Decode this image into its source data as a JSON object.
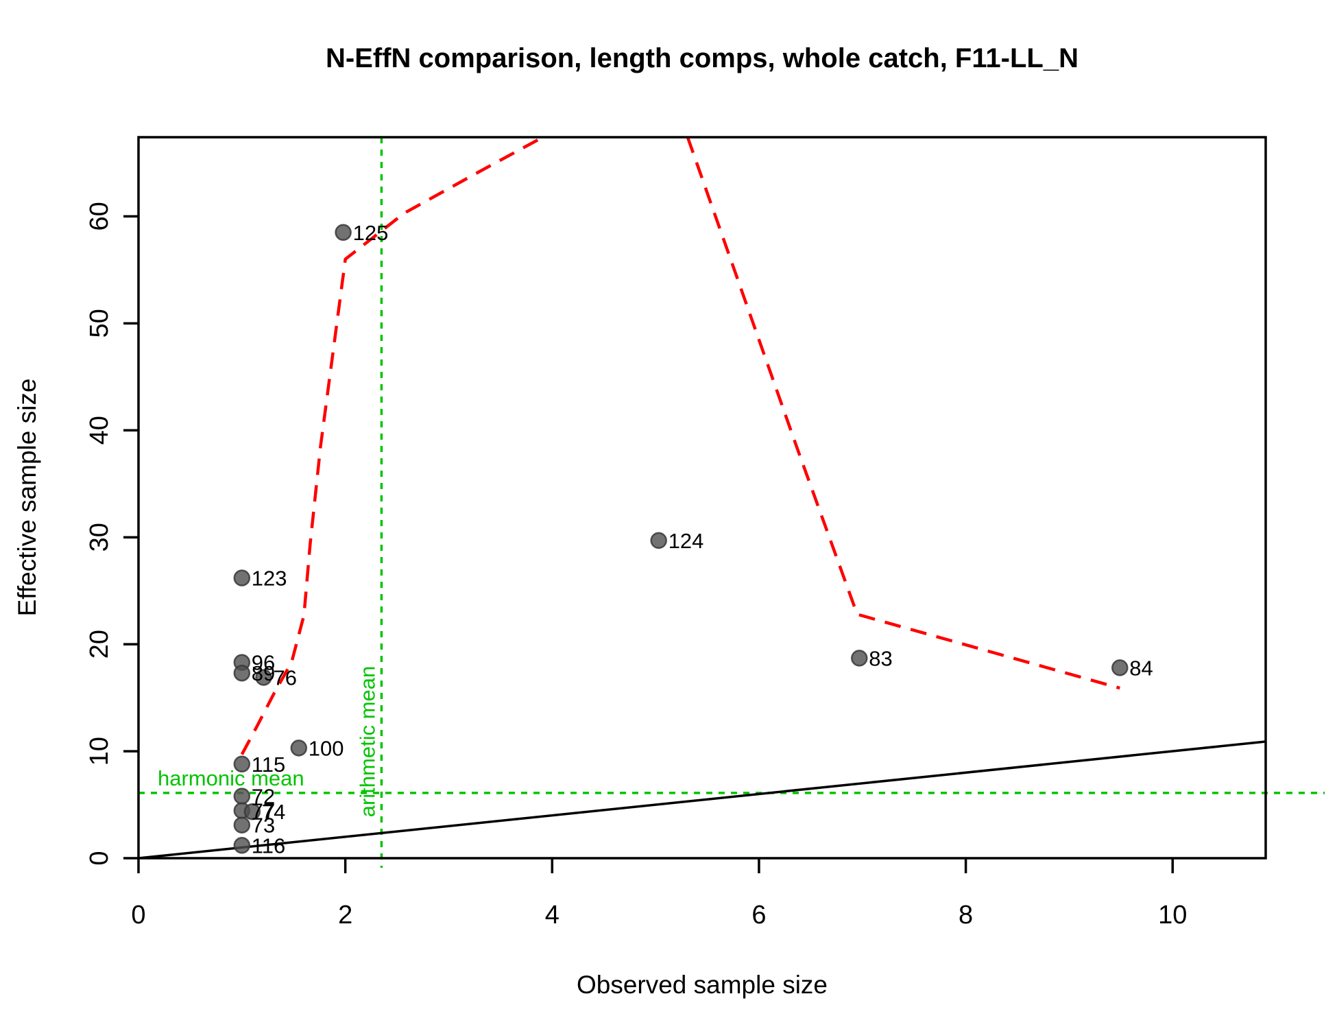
{
  "title": "N-EffN comparison, length comps, whole catch, F11-LL_N",
  "chart_data": {
    "type": "scatter",
    "title": "N-EffN comparison, length comps, whole catch, F11-LL_N",
    "xlabel": "Observed sample size",
    "ylabel": "Effective sample size",
    "xlim": [
      0,
      10.9
    ],
    "ylim": [
      0,
      67.4
    ],
    "x_ticks": [
      0,
      2,
      4,
      6,
      8,
      10
    ],
    "y_ticks": [
      0,
      10,
      20,
      30,
      40,
      50,
      60
    ],
    "grid": false,
    "legend_position": "none",
    "point_color": "#4f4f4f",
    "point_edge_color": "#383838",
    "points": [
      {
        "label": "125",
        "x": 1.98,
        "y": 58.5
      },
      {
        "label": "123",
        "x": 1.0,
        "y": 26.2
      },
      {
        "label": "96",
        "x": 1.0,
        "y": 18.3
      },
      {
        "label": "89",
        "x": 1.0,
        "y": 17.3
      },
      {
        "label": "76",
        "x": 1.21,
        "y": 16.9
      },
      {
        "label": "100",
        "x": 1.55,
        "y": 10.3
      },
      {
        "label": "115",
        "x": 1.0,
        "y": 8.8
      },
      {
        "label": "72",
        "x": 1.0,
        "y": 5.8
      },
      {
        "label": "77",
        "x": 1.0,
        "y": 4.45
      },
      {
        "label": "74",
        "x": 1.1,
        "y": 4.35
      },
      {
        "label": "73",
        "x": 1.0,
        "y": 3.1
      },
      {
        "label": "116",
        "x": 1.0,
        "y": 1.2
      },
      {
        "label": "124",
        "x": 5.03,
        "y": 29.7
      },
      {
        "label": "83",
        "x": 6.97,
        "y": 18.7
      },
      {
        "label": "84",
        "x": 9.49,
        "y": 17.8
      }
    ],
    "loess_smoother": {
      "color": "#ff0000",
      "style": "dashed",
      "segments": [
        [
          [
            1.0,
            9.7
          ],
          [
            1.15,
            12.4
          ],
          [
            1.31,
            15.4
          ],
          [
            1.48,
            18.3
          ],
          [
            1.6,
            22.7
          ],
          [
            1.66,
            29.4
          ],
          [
            1.76,
            38.5
          ],
          [
            2.0,
            56.0
          ],
          [
            2.57,
            60.3
          ],
          [
            3.3,
            64.2
          ],
          [
            3.91,
            67.4
          ]
        ],
        [
          [
            5.31,
            67.4
          ],
          [
            6.37,
            38.3
          ],
          [
            6.95,
            22.8
          ],
          [
            9.49,
            15.9
          ]
        ]
      ]
    },
    "one_to_one_line": {
      "color": "#000000",
      "points": [
        [
          0,
          0
        ],
        [
          10.9,
          10.9
        ]
      ]
    },
    "harmonic_mean": {
      "value": 6.1,
      "label": "harmonic mean",
      "color": "#00c400",
      "style": "dotted"
    },
    "arithmetic_mean": {
      "value": 2.35,
      "label": "arithmetic mean",
      "color": "#00c400",
      "style": "dotted"
    }
  }
}
